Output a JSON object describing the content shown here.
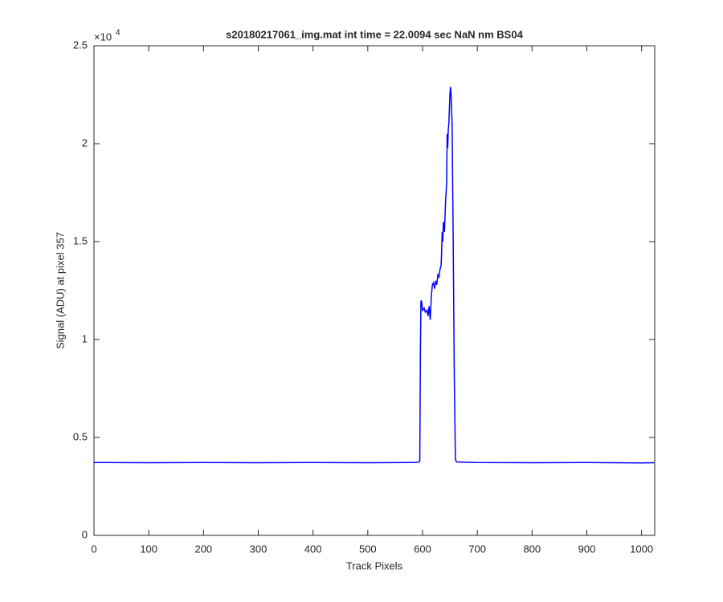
{
  "chart_data": {
    "type": "line",
    "title": "s20180217061_img.mat int time = 22.0094 sec  NaN nm BS04",
    "x_label": "Track Pixels",
    "y_label": "Signal (ADU) at pixel 357",
    "y_offset_text": {
      "base": "×10",
      "exponent": "4"
    },
    "xlim": [
      0,
      1024
    ],
    "xticks": [
      0,
      100,
      200,
      300,
      400,
      500,
      600,
      700,
      800,
      900,
      1000
    ],
    "ylim": [
      0,
      2.5
    ],
    "yticks": [
      0,
      0.5,
      1,
      1.5,
      2,
      2.5
    ],
    "grid": false,
    "series": [
      {
        "color": "#0000ff",
        "x": [
          0,
          100,
          200,
          300,
          400,
          500,
          580,
          592,
          595,
          596,
          597,
          598,
          600,
          603,
          605,
          608,
          610,
          612,
          614,
          616,
          618,
          620,
          622,
          624,
          626,
          628,
          630,
          632,
          634,
          636,
          637,
          638,
          640,
          642,
          644,
          645,
          646,
          647,
          648,
          650,
          651,
          652,
          654,
          656,
          658,
          660,
          662,
          700,
          800,
          900,
          1000,
          1023
        ],
        "values": [
          0.372,
          0.371,
          0.372,
          0.371,
          0.372,
          0.371,
          0.372,
          0.373,
          0.38,
          0.9,
          1.19,
          1.2,
          1.15,
          1.16,
          1.14,
          1.15,
          1.12,
          1.17,
          1.1,
          1.22,
          1.28,
          1.29,
          1.26,
          1.3,
          1.28,
          1.33,
          1.32,
          1.36,
          1.38,
          1.55,
          1.5,
          1.6,
          1.55,
          1.7,
          1.8,
          2.05,
          1.98,
          2.07,
          2.1,
          2.25,
          2.29,
          2.26,
          2.1,
          1.5,
          0.8,
          0.39,
          0.375,
          0.372,
          0.371,
          0.372,
          0.37,
          0.371
        ]
      }
    ]
  }
}
